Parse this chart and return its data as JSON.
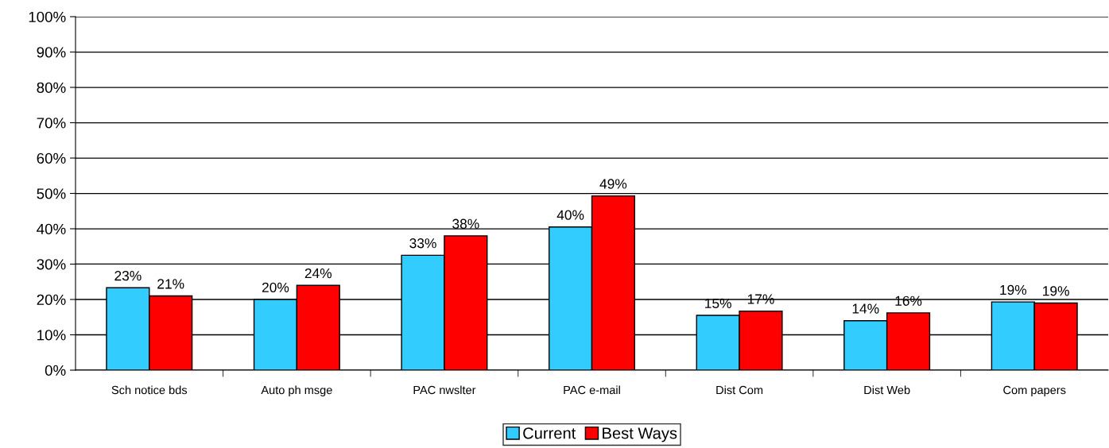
{
  "chart_data": {
    "type": "bar",
    "categories": [
      "Sch notice bds",
      "Auto ph msge",
      "PAC nwslter",
      "PAC e-mail",
      "Dist Com",
      "Dist Web",
      "Com papers"
    ],
    "series": [
      {
        "name": "Current",
        "color": "#33ccff",
        "values": [
          23.3,
          20,
          32.5,
          40.5,
          15.5,
          14,
          19.3
        ],
        "value_labels": [
          "23%",
          "20%",
          "33%",
          "40%",
          "15%",
          "14%",
          "19%"
        ]
      },
      {
        "name": "Best Ways",
        "color": "#ff0000",
        "values": [
          21,
          24,
          38,
          49.3,
          16.7,
          16.2,
          19
        ],
        "value_labels": [
          "21%",
          "24%",
          "38%",
          "49%",
          "17%",
          "16%",
          "19%"
        ]
      }
    ],
    "ylim": [
      0,
      100
    ],
    "yticks": [
      {
        "value": 0,
        "label": "0%"
      },
      {
        "value": 10,
        "label": "10%"
      },
      {
        "value": 20,
        "label": "20%"
      },
      {
        "value": 30,
        "label": "30%"
      },
      {
        "value": 40,
        "label": "40%"
      },
      {
        "value": 50,
        "label": "50%"
      },
      {
        "value": 60,
        "label": "60%"
      },
      {
        "value": 70,
        "label": "70%"
      },
      {
        "value": 80,
        "label": "80%"
      },
      {
        "value": 90,
        "label": "90%"
      },
      {
        "value": 100,
        "label": "100%"
      }
    ],
    "grid": "y",
    "legend": "bottom"
  }
}
